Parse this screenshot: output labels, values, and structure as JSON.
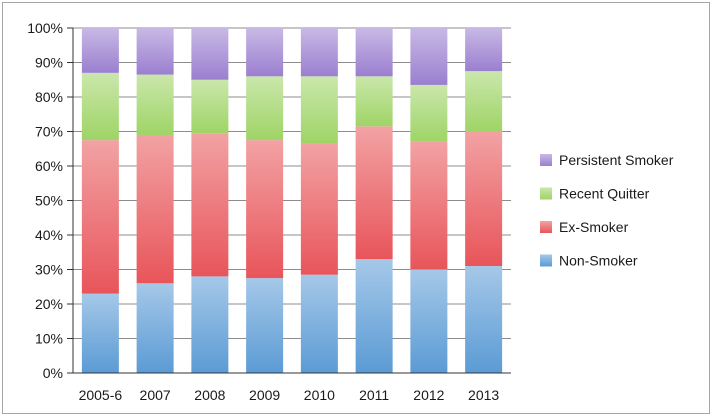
{
  "chart_data": {
    "type": "bar",
    "stacked": true,
    "percent": true,
    "categories": [
      "2005-6",
      "2007",
      "2008",
      "2009",
      "2010",
      "2011",
      "2012",
      "2013"
    ],
    "series": [
      {
        "name": "Non-Smoker",
        "color": "#5b9bd5",
        "values": [
          23,
          26,
          28,
          27.5,
          28.5,
          33,
          30,
          31
        ]
      },
      {
        "name": "Ex-Smoker",
        "color": "#e8555a",
        "values": [
          44.5,
          43,
          41.5,
          40,
          38,
          38.5,
          37,
          39
        ]
      },
      {
        "name": "Recent Quitter",
        "color": "#9fd466",
        "values": [
          19.5,
          17.5,
          15.5,
          18.5,
          19.5,
          14.5,
          16.5,
          17.5
        ]
      },
      {
        "name": "Persistent Smoker",
        "color": "#9b7fd0",
        "values": [
          13,
          13.5,
          15,
          14,
          14,
          14,
          16.5,
          12.5
        ]
      }
    ],
    "yticks": [
      "0%",
      "10%",
      "20%",
      "30%",
      "40%",
      "50%",
      "60%",
      "70%",
      "80%",
      "90%",
      "100%"
    ],
    "ylim": [
      0,
      100
    ],
    "grid": "horizontal",
    "legend": "right",
    "legend_order": [
      "Persistent Smoker",
      "Recent Quitter",
      "Ex-Smoker",
      "Non-Smoker"
    ]
  }
}
